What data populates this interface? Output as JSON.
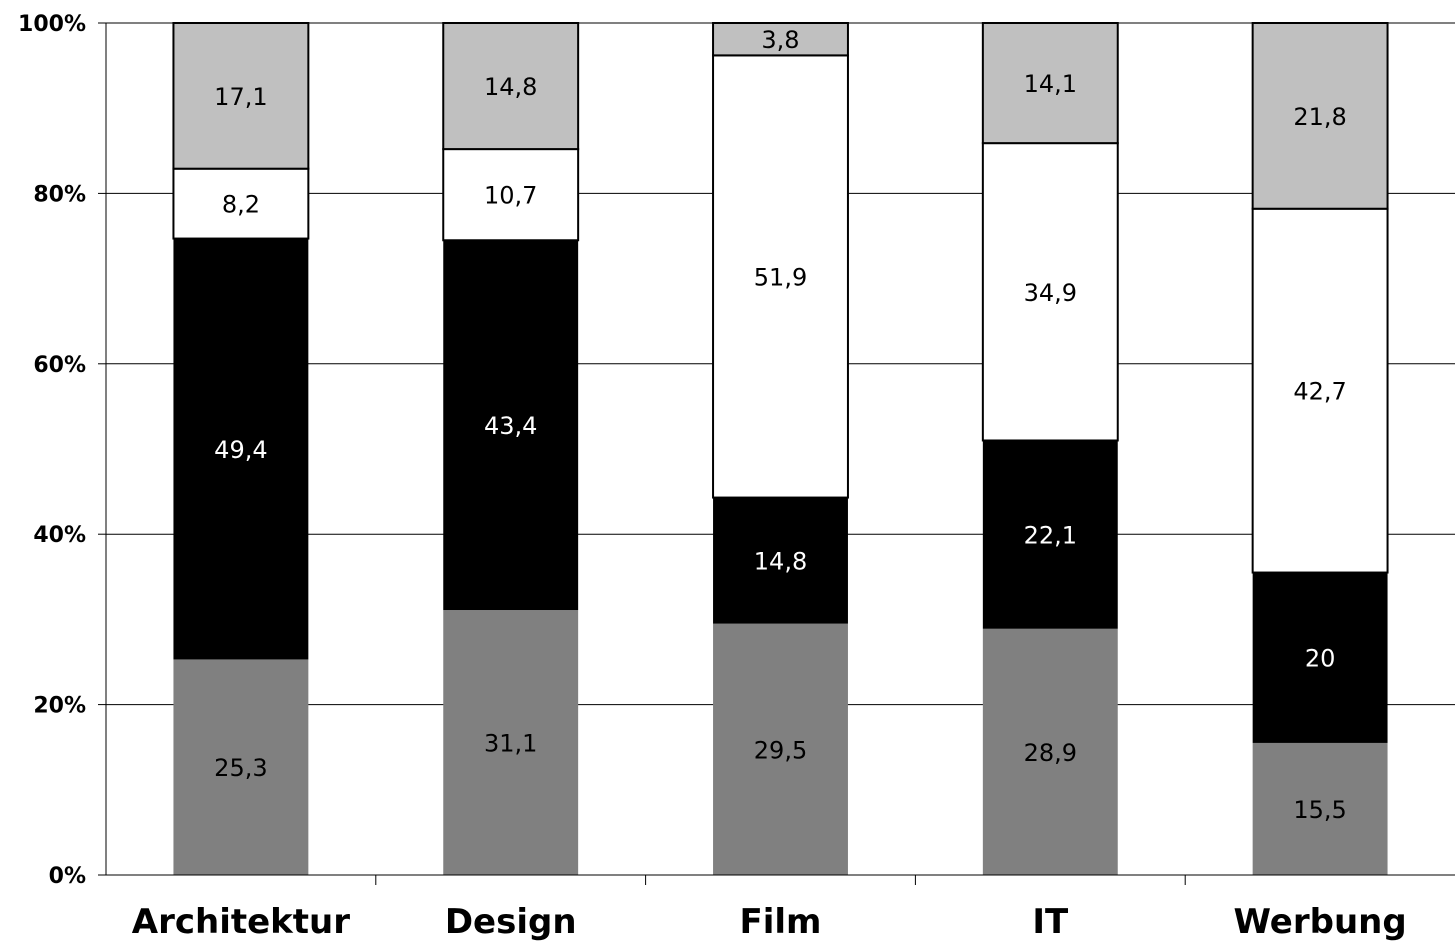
{
  "chart_data": {
    "type": "bar",
    "stacked": true,
    "percent_stacked": true,
    "categories": [
      "Architektur",
      "Design",
      "Film",
      "IT",
      "Werbung"
    ],
    "series": [
      {
        "values": [
          25.3,
          31.1,
          29.5,
          28.9,
          15.5
        ],
        "labels": [
          "25,3",
          "31,1",
          "29,5",
          "28,9",
          "15,5"
        ],
        "color": "#808080",
        "label_color": "#000000",
        "outlined": false
      },
      {
        "values": [
          49.4,
          43.4,
          14.8,
          22.1,
          20.0
        ],
        "labels": [
          "49,4",
          "43,4",
          "14,8",
          "22,1",
          "20"
        ],
        "color": "#000000",
        "label_color": "#ffffff",
        "outlined": false
      },
      {
        "values": [
          8.2,
          10.7,
          51.9,
          34.9,
          42.7
        ],
        "labels": [
          "8,2",
          "10,7",
          "51,9",
          "34,9",
          "42,7"
        ],
        "color": "#ffffff",
        "label_color": "#000000",
        "outlined": true
      },
      {
        "values": [
          17.1,
          14.8,
          3.8,
          14.1,
          21.8
        ],
        "labels": [
          "17,1",
          "14,8",
          "3,8",
          "14,1",
          "21,8"
        ],
        "color": "#c0c0c0",
        "label_color": "#000000",
        "outlined": true
      }
    ],
    "yticks": [
      "0%",
      "20%",
      "40%",
      "60%",
      "80%",
      "100%"
    ],
    "ylim": [
      0,
      100
    ],
    "grid": true,
    "title": "",
    "xlabel": "",
    "ylabel": ""
  }
}
